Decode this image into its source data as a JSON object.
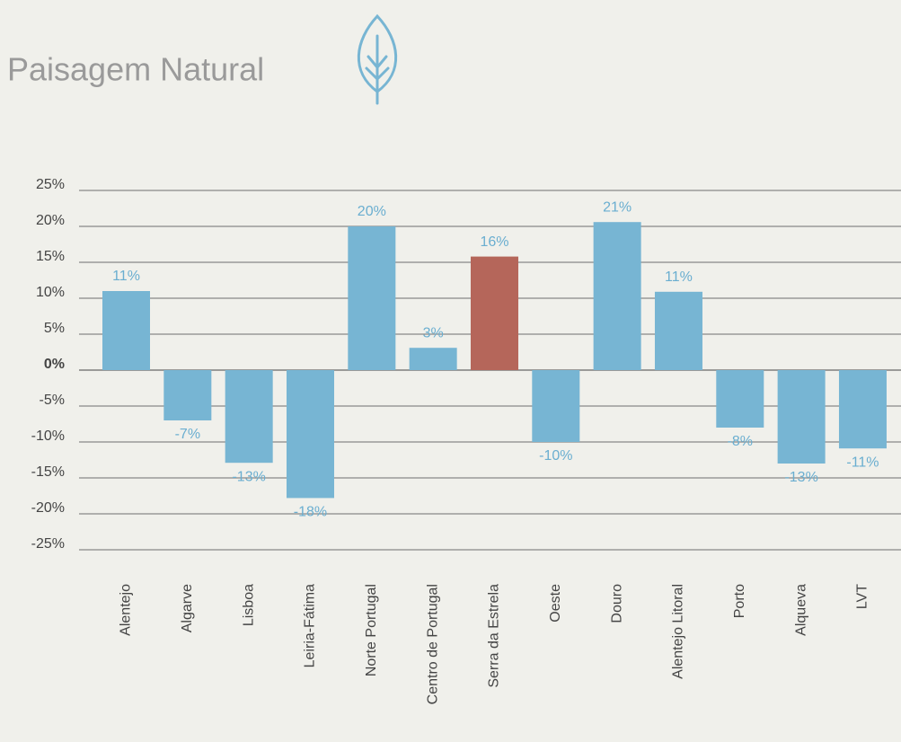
{
  "chart_data": {
    "type": "bar",
    "title": "Paisagem Natural",
    "categories": [
      "Alentejo",
      "Algarve",
      "Lisboa",
      "Leiria-Fátima",
      "Norte Portugal",
      "Centro de Portugal",
      "Serra da Estrela",
      "Oeste",
      "Douro",
      "Alentejo Litoral",
      "Porto",
      "Alqueva",
      "LVT"
    ],
    "values": [
      11,
      -7,
      -12.9,
      -17.8,
      20,
      3.1,
      15.8,
      -10,
      20.6,
      10.9,
      -8,
      -13,
      -10.9
    ],
    "value_labels": [
      "11%",
      "-7%",
      "-13%",
      "-18%",
      "20%",
      "3%",
      "16%",
      "-10%",
      "21%",
      "11%",
      "-8%",
      "-13%",
      "-11%"
    ],
    "colors": [
      "#77b5d3",
      "#77b5d3",
      "#77b5d3",
      "#77b5d3",
      "#77b5d3",
      "#77b5d3",
      "#b5665a",
      "#77b5d3",
      "#77b5d3",
      "#77b5d3",
      "#77b5d3",
      "#77b5d3",
      "#77b5d3"
    ],
    "ylim": [
      -25,
      25
    ],
    "yticks": [
      {
        "value": -25,
        "label": "-25%"
      },
      {
        "value": -20,
        "label": "-20%"
      },
      {
        "value": -15,
        "label": "-15%"
      },
      {
        "value": -10,
        "label": "-10%"
      },
      {
        "value": -5,
        "label": "-5%"
      },
      {
        "value": 0,
        "label": "0%"
      },
      {
        "value": 5,
        "label": "5%"
      },
      {
        "value": 10,
        "label": "10%"
      },
      {
        "value": 15,
        "label": "15%"
      },
      {
        "value": 20,
        "label": "20%"
      },
      {
        "value": 25,
        "label": "25%"
      }
    ],
    "grid": true
  }
}
